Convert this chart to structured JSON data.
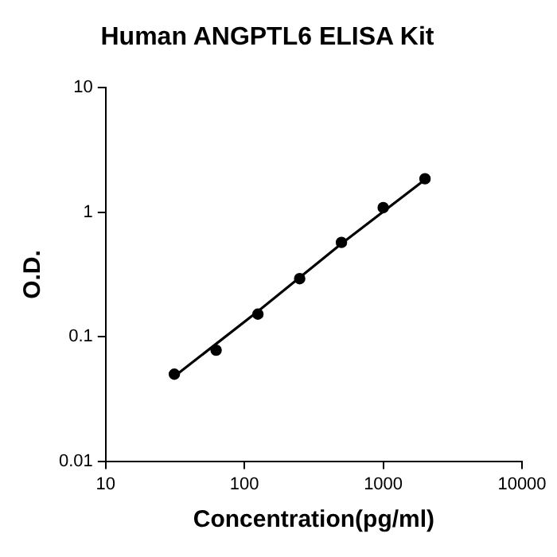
{
  "chart_data": {
    "type": "scatter",
    "title": "Human ANGPTL6 ELISA Kit",
    "xlabel": "Concentration(pg/ml)",
    "ylabel": "O.D.",
    "log": "xy",
    "xlim": [
      10,
      10000
    ],
    "xticks": [
      10,
      100,
      1000,
      10000
    ],
    "ylim": [
      0.01,
      10
    ],
    "yticks": [
      0.01,
      0.1,
      1,
      10
    ],
    "grid": false,
    "legend": false,
    "series": [
      {
        "color": "#000000",
        "marker": "circle",
        "x": [
          31.25,
          62.5,
          125,
          250,
          500,
          1000,
          2000
        ],
        "values": [
          0.05,
          0.078,
          0.152,
          0.293,
          0.573,
          1.09,
          1.86
        ]
      },
      {
        "type": "line",
        "color": "#000000",
        "marker": "none",
        "line_style": "solid",
        "x": [
          31.25,
          125,
          500,
          2000
        ],
        "values": [
          0.048,
          0.16,
          0.56,
          1.83
        ]
      }
    ]
  }
}
